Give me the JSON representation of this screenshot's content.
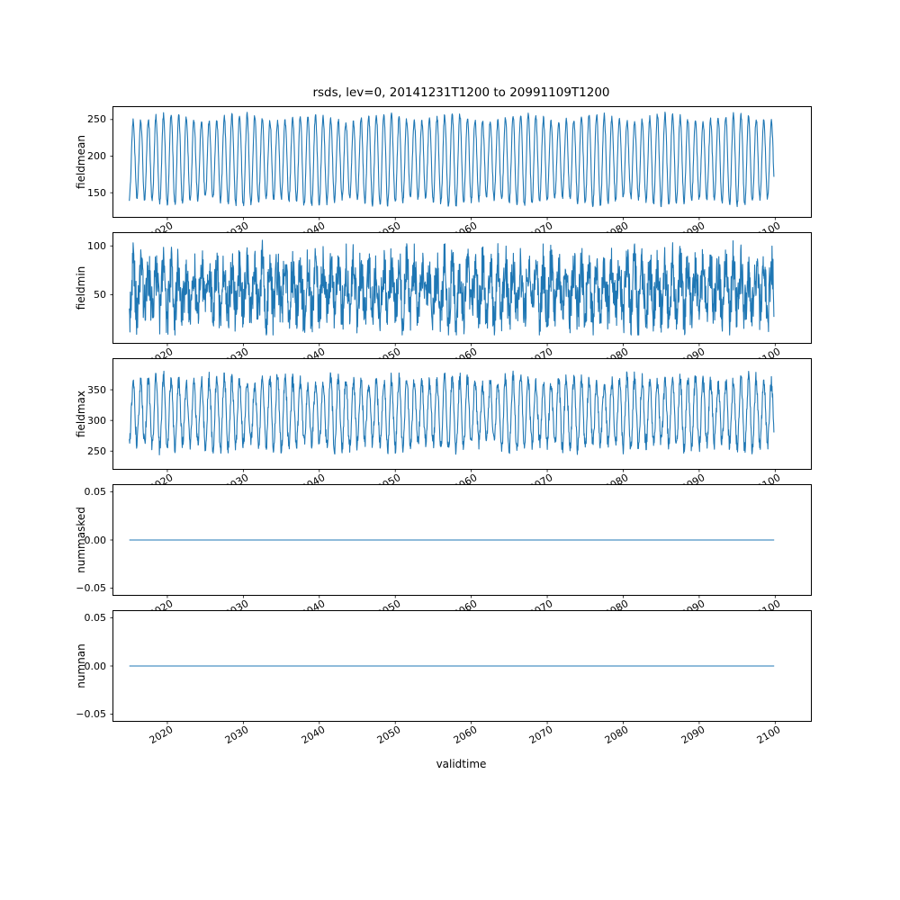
{
  "figure": {
    "title": "rsds, lev=0, 20141231T1200 to 20991109T1200",
    "xlabel": "validtime",
    "line_color": "#1f77b4",
    "axis_color": "#000000"
  },
  "xticks": [
    {
      "v": 2020,
      "label": "2020"
    },
    {
      "v": 2030,
      "label": "2030"
    },
    {
      "v": 2040,
      "label": "2040"
    },
    {
      "v": 2050,
      "label": "2050"
    },
    {
      "v": 2060,
      "label": "2060"
    },
    {
      "v": 2070,
      "label": "2070"
    },
    {
      "v": 2080,
      "label": "2080"
    },
    {
      "v": 2090,
      "label": "2090"
    },
    {
      "v": 2100,
      "label": "2100"
    }
  ],
  "chart_data": [
    {
      "type": "line",
      "ylabel": "fieldmean",
      "x_start": 2015.0,
      "x_end": 2099.87,
      "xlim": [
        2012.9,
        2104.7
      ],
      "ylim": [
        117,
        267
      ],
      "yticks": [
        {
          "v": 150,
          "label": "150"
        },
        {
          "v": 200,
          "label": "200"
        },
        {
          "v": 250,
          "label": "250"
        }
      ],
      "series": {
        "kind": "seasonal",
        "base": 195,
        "amplitude": 57,
        "period": 1,
        "phase": 0.25,
        "amp_mod": 5,
        "amp_mod_period": 9.3,
        "noise": 4,
        "clamp": [
          131,
          261
        ],
        "samples_per_year": 24
      }
    },
    {
      "type": "line",
      "ylabel": "fieldmin",
      "x_start": 2015.0,
      "x_end": 2099.87,
      "xlim": [
        2012.9,
        2104.7
      ],
      "ylim": [
        0.9,
        113.1
      ],
      "yticks": [
        {
          "v": 50,
          "label": "50"
        },
        {
          "v": 100,
          "label": "100"
        }
      ],
      "series": {
        "kind": "seasonal",
        "base": 55,
        "amplitude": 22,
        "period": 1,
        "phase": 0.25,
        "amp_mod": 4,
        "amp_mod_period": 6.1,
        "noise": 26,
        "clamp": [
          9,
          112
        ],
        "samples_per_year": 24
      }
    },
    {
      "type": "line",
      "ylabel": "fieldmax",
      "x_start": 2015.0,
      "x_end": 2099.87,
      "xlim": [
        2012.9,
        2104.7
      ],
      "ylim": [
        221,
        400
      ],
      "yticks": [
        {
          "v": 250,
          "label": "250"
        },
        {
          "v": 300,
          "label": "300"
        },
        {
          "v": 350,
          "label": "350"
        }
      ],
      "series": {
        "kind": "seasonal",
        "base": 312,
        "amplitude": 53,
        "period": 1,
        "phase": 0.25,
        "amp_mod": 6,
        "amp_mod_period": 7.7,
        "noise": 12,
        "clamp": [
          240,
          386
        ],
        "samples_per_year": 24
      }
    },
    {
      "type": "line",
      "ylabel": "nummasked",
      "x_start": 2015.0,
      "x_end": 2099.87,
      "xlim": [
        2012.9,
        2104.7
      ],
      "ylim": [
        -0.057,
        0.057
      ],
      "yticks": [
        {
          "v": -0.05,
          "label": "−0.05"
        },
        {
          "v": 0,
          "label": "0.00"
        },
        {
          "v": 0.05,
          "label": "0.05"
        }
      ],
      "series": {
        "kind": "constant",
        "value": 0
      }
    },
    {
      "type": "line",
      "ylabel": "numnan",
      "x_start": 2015.0,
      "x_end": 2099.87,
      "xlim": [
        2012.9,
        2104.7
      ],
      "ylim": [
        -0.057,
        0.057
      ],
      "yticks": [
        {
          "v": -0.05,
          "label": "−0.05"
        },
        {
          "v": 0,
          "label": "0.00"
        },
        {
          "v": 0.05,
          "label": "0.05"
        }
      ],
      "series": {
        "kind": "constant",
        "value": 0
      }
    }
  ]
}
